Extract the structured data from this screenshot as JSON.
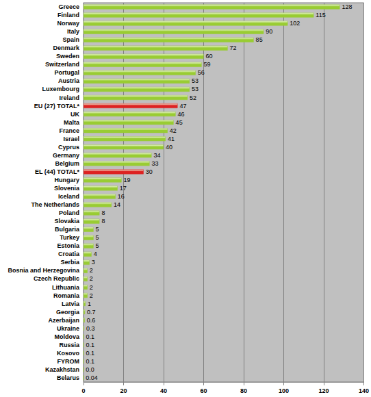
{
  "chart_data": {
    "type": "bar",
    "orientation": "horizontal",
    "categories": [
      "Greece",
      "Finland",
      "Norway",
      "Italy",
      "Spain",
      "Denmark",
      "Sweden",
      "Switzerland",
      "Portugal",
      "Austria",
      "Luxembourg",
      "Ireland",
      "EU (27) TOTAL*",
      "UK",
      "Malta",
      "France",
      "Israel",
      "Cyprus",
      "Germany",
      "Belgium",
      "EL (44) TOTAL*",
      "Hungary",
      "Slovenia",
      "Iceland",
      "The Netherlands",
      "Poland",
      "Slovakia",
      "Bulgaria",
      "Turkey",
      "Estonia",
      "Croatia",
      "Serbia",
      "Bosnia and Herzegovina",
      "Czech Republic",
      "Lithuania",
      "Romania",
      "Latvia",
      "Georgia",
      "Azerbaijan",
      "Ukraine",
      "Moldova",
      "Russia",
      "Kosovo",
      "FYROM",
      "Kazakhstan",
      "Belarus"
    ],
    "values": [
      128,
      115,
      102,
      90,
      85,
      72,
      60,
      59,
      56,
      53,
      53,
      52,
      47,
      46,
      45,
      42,
      41,
      40,
      34,
      33,
      30,
      19,
      17,
      16,
      14,
      8,
      8,
      5,
      5,
      5,
      4,
      3,
      2,
      2,
      2,
      2,
      1,
      0.7,
      0.6,
      0.3,
      0.1,
      0.1,
      0.1,
      0.1,
      0,
      0.04
    ],
    "value_labels": [
      "128",
      "115",
      "102",
      "90",
      "85",
      "72",
      "60",
      "59",
      "56",
      "53",
      "53",
      "52",
      "47",
      "46",
      "45",
      "42",
      "41",
      "40",
      "34",
      "33",
      "30",
      "19",
      "17",
      "16",
      "14",
      "8",
      "8",
      "5",
      "5",
      "5",
      "4",
      "3",
      "2",
      "2",
      "2",
      "2",
      "1",
      "0.7",
      "0.6",
      "0.3",
      "0.1",
      "0.1",
      "0.1",
      "0.1",
      "0.0",
      "0.04"
    ],
    "colors": [
      "#99cc33",
      "#99cc33",
      "#99cc33",
      "#99cc33",
      "#99cc33",
      "#99cc33",
      "#99cc33",
      "#99cc33",
      "#99cc33",
      "#99cc33",
      "#99cc33",
      "#99cc33",
      "#dd2222",
      "#99cc33",
      "#99cc33",
      "#99cc33",
      "#99cc33",
      "#99cc33",
      "#99cc33",
      "#99cc33",
      "#dd2222",
      "#99cc33",
      "#99cc33",
      "#99cc33",
      "#99cc33",
      "#99cc33",
      "#99cc33",
      "#99cc33",
      "#99cc33",
      "#99cc33",
      "#99cc33",
      "#99cc33",
      "#99cc33",
      "#99cc33",
      "#99cc33",
      "#99cc33",
      "#99cc33",
      "#99cc33",
      "#99cc33",
      "#99cc33",
      "#99cc33",
      "#99cc33",
      "#99cc33",
      "#99cc33",
      "#99cc33",
      "#99cc33"
    ],
    "xlim": [
      0,
      140
    ],
    "xticks": [
      0,
      20,
      40,
      60,
      80,
      100,
      120,
      140
    ],
    "grid": true,
    "data_labels": true
  }
}
